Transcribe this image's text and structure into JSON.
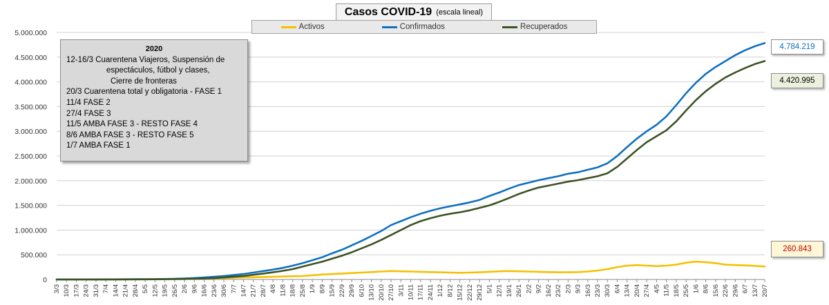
{
  "title": {
    "main": "Casos  COVID-19",
    "sub": "(escala lineal)"
  },
  "legend": [
    {
      "label": "Activos",
      "color": "#f5c000"
    },
    {
      "label": "Confirmados",
      "color": "#0f6fbf"
    },
    {
      "label": "Recuperados",
      "color": "#3b5222"
    }
  ],
  "note": {
    "title": "2020",
    "lines": [
      "12-16/3  Cuarentena Viajeros, Suspensión de",
      "espectáculos, fútbol y clases,",
      "Cierre de fronteras",
      "20/3 Cuarentena total y obligatoria - FASE 1",
      "11/4 FASE 2",
      "27/4 FASE 3",
      "11/5 AMBA FASE 3 - RESTO FASE 4",
      "8/6 AMBA FASE 3  - RESTO FASE 5",
      "1/7 AMBA FASE 1"
    ]
  },
  "last_values": {
    "confirmados": "4.784.219",
    "recuperados": "4.420.995",
    "activos": "260.843"
  },
  "colors": {
    "activos": "#f5c000",
    "confirmados": "#0f6fbf",
    "recuperados": "#3b5222",
    "grid": "#d0d0d0"
  },
  "chart_data": {
    "type": "line",
    "title": "Casos  COVID-19",
    "subtitle": "(escala lineal)",
    "ylim": [
      0,
      5000000
    ],
    "yticks": [
      "0",
      "500.000",
      "1.000.000",
      "1.500.000",
      "2.000.000",
      "2.500.000",
      "3.000.000",
      "3.500.000",
      "4.000.000",
      "4.500.000",
      "5.000.000"
    ],
    "grid": true,
    "legend_position": "top",
    "categories": [
      "3/3",
      "10/3",
      "17/3",
      "24/3",
      "31/3",
      "7/4",
      "14/4",
      "21/4",
      "28/4",
      "5/5",
      "12/5",
      "19/5",
      "26/5",
      "2/6",
      "9/6",
      "16/6",
      "23/6",
      "30/6",
      "7/7",
      "14/7",
      "21/7",
      "28/7",
      "4/8",
      "11/8",
      "18/8",
      "25/8",
      "1/9",
      "8/9",
      "15/9",
      "22/9",
      "29/9",
      "6/10",
      "13/10",
      "20/10",
      "27/10",
      "3/11",
      "10/11",
      "17/11",
      "24/11",
      "1/12",
      "8/12",
      "15/12",
      "22/12",
      "29/12",
      "5/1",
      "12/1",
      "19/1",
      "26/1",
      "2/2",
      "9/2",
      "16/2",
      "23/2",
      "2/3",
      "9/3",
      "16/3",
      "23/3",
      "30/3",
      "6/4",
      "13/4",
      "20/4",
      "27/4",
      "4/5",
      "11/5",
      "18/5",
      "25/5",
      "1/6",
      "8/6",
      "15/6",
      "22/6",
      "29/6",
      "6/7",
      "13/7",
      "20/7"
    ],
    "series": [
      {
        "name": "Activos",
        "values": [
          0,
          0,
          0,
          0,
          1000,
          1500,
          2000,
          2500,
          3000,
          3500,
          5000,
          7000,
          9000,
          12000,
          15000,
          20000,
          25000,
          30000,
          35000,
          40000,
          45000,
          50000,
          55000,
          60000,
          65000,
          70000,
          85000,
          100000,
          110000,
          120000,
          130000,
          140000,
          150000,
          160000,
          170000,
          165000,
          160000,
          155000,
          150000,
          145000,
          140000,
          135000,
          140000,
          145000,
          155000,
          165000,
          170000,
          165000,
          160000,
          155000,
          150000,
          145000,
          145000,
          150000,
          160000,
          180000,
          210000,
          250000,
          280000,
          290000,
          280000,
          270000,
          280000,
          300000,
          340000,
          360000,
          350000,
          330000,
          300000,
          290000,
          285000,
          275000,
          260843
        ]
      },
      {
        "name": "Confirmados",
        "values": [
          0,
          0,
          0,
          0,
          1000,
          2000,
          3000,
          4000,
          5000,
          6000,
          7000,
          10000,
          14000,
          20000,
          30000,
          40000,
          55000,
          70000,
          90000,
          110000,
          140000,
          170000,
          200000,
          235000,
          280000,
          330000,
          390000,
          450000,
          530000,
          600000,
          690000,
          780000,
          880000,
          980000,
          1100000,
          1180000,
          1260000,
          1330000,
          1390000,
          1440000,
          1480000,
          1520000,
          1560000,
          1610000,
          1690000,
          1760000,
          1840000,
          1910000,
          1960000,
          2010000,
          2050000,
          2090000,
          2140000,
          2170000,
          2220000,
          2270000,
          2350000,
          2500000,
          2680000,
          2850000,
          3000000,
          3130000,
          3300000,
          3530000,
          3770000,
          3980000,
          4160000,
          4300000,
          4420000,
          4540000,
          4640000,
          4720000,
          4784219
        ]
      },
      {
        "name": "Recuperados",
        "values": [
          0,
          0,
          0,
          0,
          500,
          1000,
          1500,
          2000,
          2500,
          3000,
          4000,
          5000,
          7000,
          10000,
          15000,
          20000,
          30000,
          40000,
          55000,
          70000,
          95000,
          120000,
          145000,
          175000,
          210000,
          260000,
          310000,
          360000,
          420000,
          480000,
          550000,
          630000,
          710000,
          800000,
          900000,
          1000000,
          1100000,
          1180000,
          1240000,
          1290000,
          1330000,
          1360000,
          1400000,
          1450000,
          1500000,
          1570000,
          1650000,
          1730000,
          1800000,
          1860000,
          1900000,
          1940000,
          1980000,
          2010000,
          2050000,
          2090000,
          2150000,
          2280000,
          2450000,
          2620000,
          2780000,
          2900000,
          3020000,
          3200000,
          3420000,
          3630000,
          3810000,
          3960000,
          4090000,
          4190000,
          4280000,
          4360000,
          4420995
        ]
      }
    ]
  }
}
